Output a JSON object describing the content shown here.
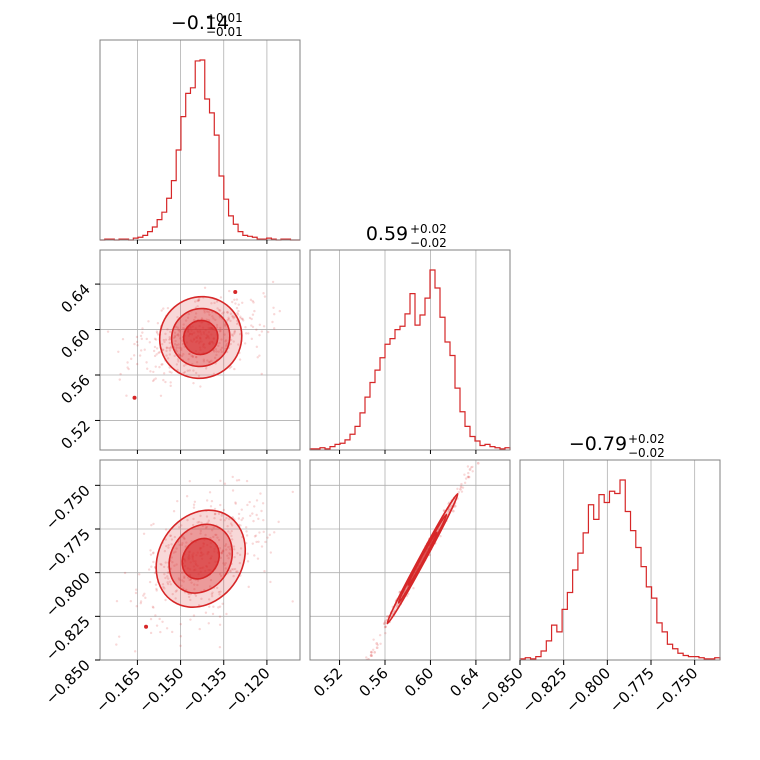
{
  "chart_data": {
    "type": "corner",
    "color": "#d62728",
    "grid": true,
    "parameters": [
      {
        "title": "−0.14",
        "title_plus": "+0.01",
        "title_minus": "−0.01",
        "range": [
          -0.178,
          -0.1085
        ],
        "ticks": [
          -0.165,
          -0.15,
          -0.135,
          -0.12
        ],
        "tick_labels": [
          "−0.165",
          "−0.150",
          "−0.135",
          "−0.120"
        ]
      },
      {
        "title": "0.59",
        "title_plus": "+0.02",
        "title_minus": "−0.02",
        "range": [
          0.494,
          0.67
        ],
        "ticks": [
          0.52,
          0.56,
          0.6,
          0.64
        ],
        "tick_labels": [
          "0.52",
          "0.56",
          "0.60",
          "0.64"
        ]
      },
      {
        "title": "−0.79",
        "title_plus": "+0.02",
        "title_minus": "−0.02",
        "range": [
          -0.85,
          -0.7355
        ],
        "ticks": [
          -0.85,
          -0.825,
          -0.8,
          -0.775,
          -0.75
        ],
        "tick_labels": [
          "−0.850",
          "−0.825",
          "−0.800",
          "−0.775",
          "−0.750"
        ]
      }
    ],
    "histograms": [
      {
        "param": 0,
        "bin_edges": [
          -0.178,
          -0.1085
        ],
        "counts": [
          0,
          1,
          1,
          0,
          1,
          1,
          0,
          2,
          3,
          5,
          9,
          14,
          22,
          30,
          45,
          64,
          97,
          133,
          158,
          164,
          193,
          194,
          152,
          137,
          113,
          69,
          44,
          26,
          17,
          9,
          5,
          4,
          3,
          1,
          1,
          2,
          1,
          0,
          1,
          1,
          0,
          0
        ]
      },
      {
        "param": 1,
        "bin_edges": [
          0.494,
          0.67
        ],
        "counts": [
          1,
          1,
          2,
          1,
          3,
          5,
          6,
          9,
          14,
          21,
          33,
          47,
          60,
          71,
          82,
          94,
          99,
          107,
          110,
          121,
          139,
          111,
          120,
          135,
          160,
          144,
          118,
          96,
          84,
          55,
          34,
          21,
          12,
          8,
          4,
          5,
          3,
          2,
          1,
          2
        ]
      },
      {
        "param": 2,
        "bin_edges": [
          -0.85,
          -0.7355
        ],
        "counts": [
          1,
          2,
          1,
          3,
          8,
          17,
          31,
          25,
          45,
          60,
          80,
          95,
          113,
          138,
          125,
          147,
          140,
          150,
          148,
          160,
          132,
          115,
          100,
          83,
          65,
          55,
          33,
          25,
          14,
          10,
          6,
          4,
          3,
          3,
          2,
          1,
          1,
          2
        ]
      }
    ],
    "pairs": [
      {
        "x": 0,
        "y": 1,
        "direction": "positive correlation",
        "center": [
          -0.143,
          0.593
        ],
        "slope": 2.2,
        "spread_along": 0.011,
        "spread_across": 0.006,
        "outlier_points": [
          [
            -0.166,
            0.54
          ],
          [
            -0.131,
            0.633
          ]
        ]
      },
      {
        "x": 0,
        "y": 2,
        "direction": "positive correlation",
        "center": [
          -0.143,
          -0.792
        ],
        "slope": 2.6,
        "spread_along": 0.011,
        "spread_across": 0.006,
        "outlier_points": [
          [
            -0.162,
            -0.831
          ]
        ]
      },
      {
        "x": 1,
        "y": 2,
        "direction": "strong positive correlation",
        "center": [
          0.593,
          -0.792
        ],
        "slope": 1.2,
        "spread_along": 0.022,
        "spread_across": 0.001,
        "line_range": [
          0.53,
          0.66
        ]
      }
    ]
  }
}
